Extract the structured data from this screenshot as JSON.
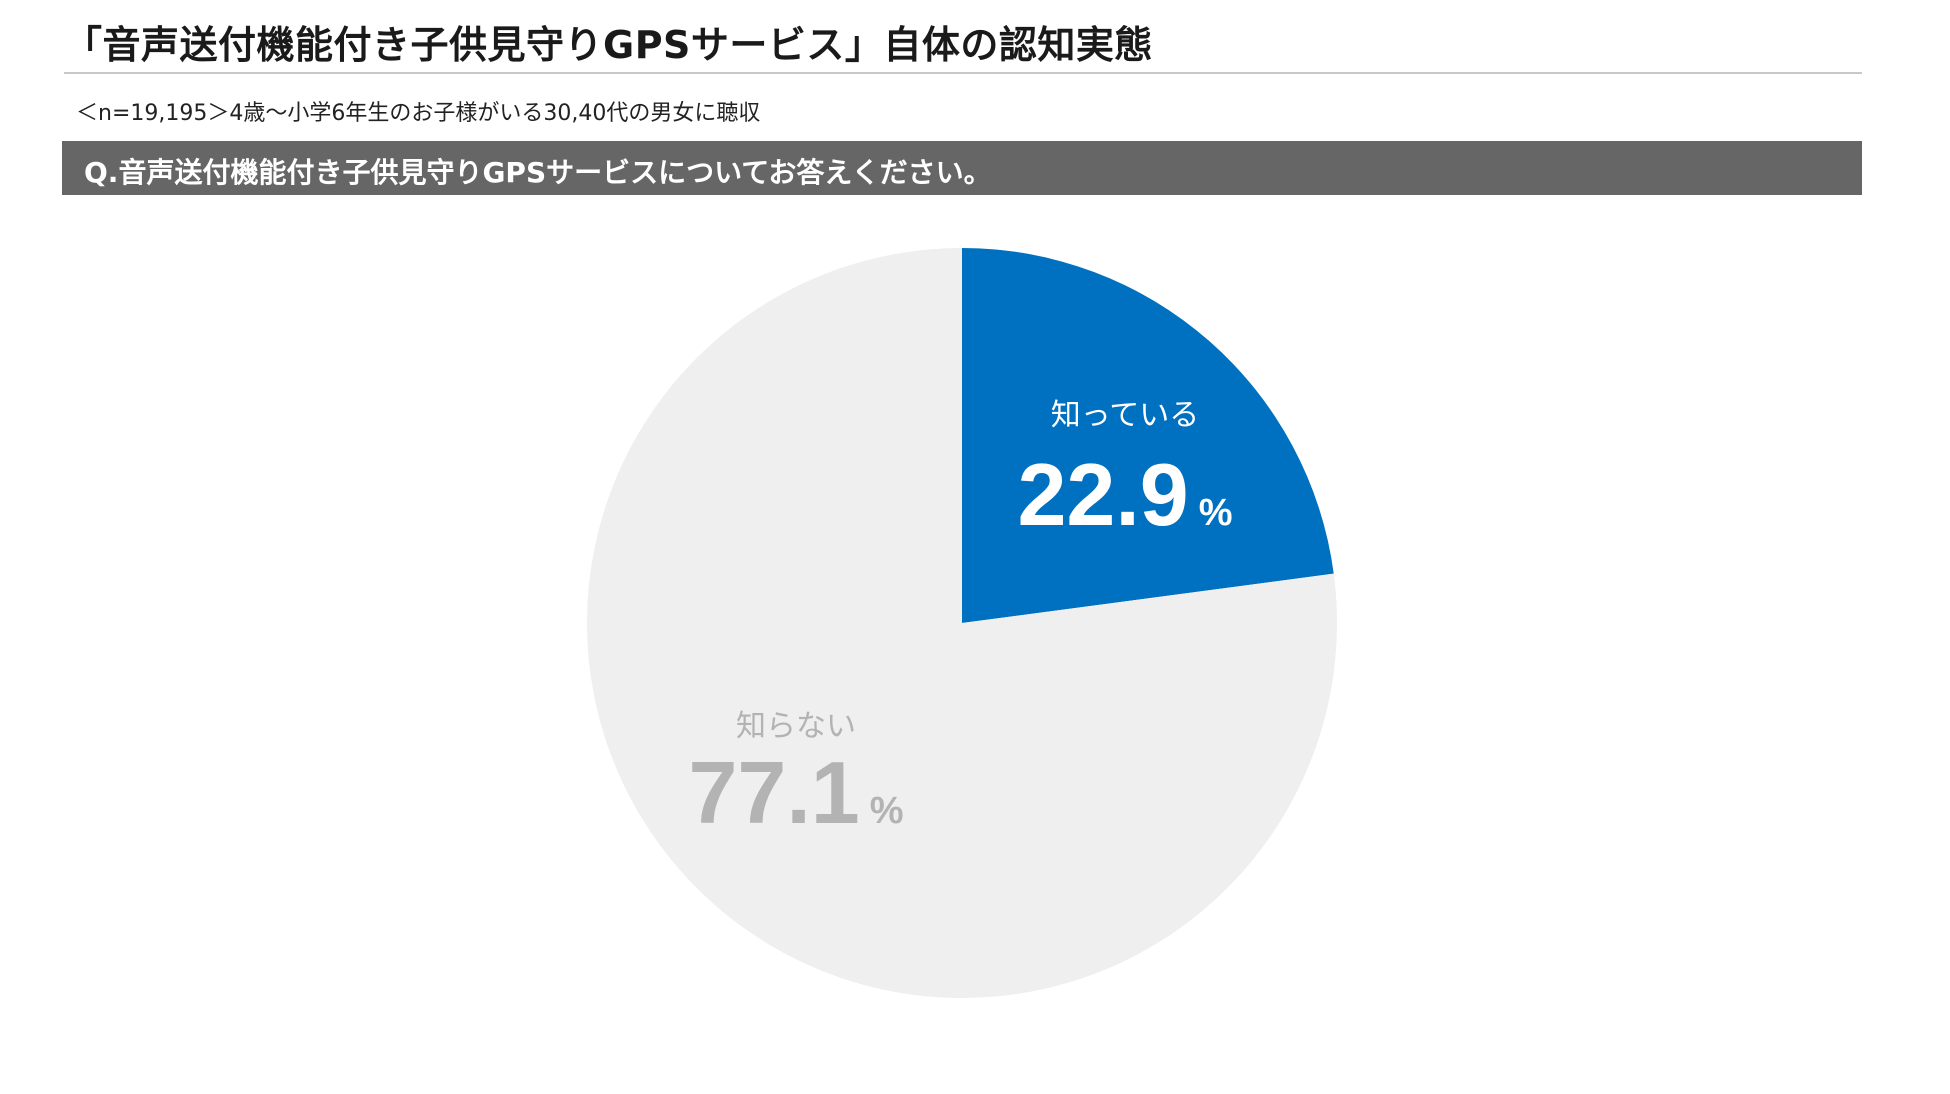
{
  "header": {
    "title": "「音声送付機能付き子供見守りGPSサービス」自体の認知実態",
    "subtitle": "＜n=19,195＞4歳〜小学6年生のお子様がいる30,40代の男女に聴収"
  },
  "question": {
    "text": "Q.音声送付機能付き子供見守りGPSサービスについてお答えください。"
  },
  "colors": {
    "known": "#0070c0",
    "unknown": "#efefef",
    "known_text": "#ffffff",
    "unknown_text": "#b3b3b3"
  },
  "chart_data": {
    "type": "pie",
    "title": "",
    "start": "12 o'clock, clockwise",
    "slices": [
      {
        "label": "知っている",
        "value": 22.9,
        "unit": "%",
        "color": "#0070c0",
        "text_color": "#ffffff"
      },
      {
        "label": "知らない",
        "value": 77.1,
        "unit": "%",
        "color": "#efefef",
        "text_color": "#b3b3b3"
      }
    ]
  }
}
